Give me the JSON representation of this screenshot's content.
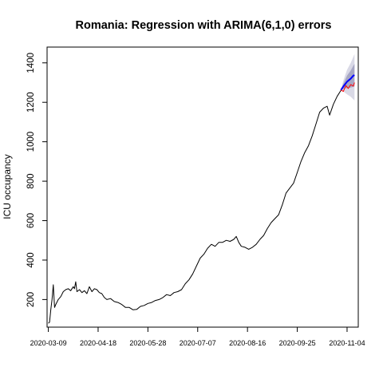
{
  "chart_data": {
    "type": "line",
    "title": "Romania: Regression with ARIMA(6,1,0) errors",
    "xlabel": "",
    "ylabel": "ICU occupancy",
    "x_ticks": [
      "2020-03-09",
      "2020-04-18",
      "2020-05-28",
      "2020-07-07",
      "2020-08-16",
      "2020-09-25",
      "2020-11-04"
    ],
    "y_ticks": [
      200,
      400,
      600,
      800,
      1000,
      1200,
      1400
    ],
    "xlim": [
      "2020-03-08",
      "2020-11-13"
    ],
    "ylim": [
      60,
      1480
    ],
    "grid": false,
    "series": [
      {
        "role": "observed",
        "color": "#000000",
        "points": [
          [
            "2020-03-09",
            80
          ],
          [
            "2020-03-10",
            85
          ],
          [
            "2020-03-11",
            150
          ],
          [
            "2020-03-12",
            200
          ],
          [
            "2020-03-13",
            275
          ],
          [
            "2020-03-14",
            160
          ],
          [
            "2020-03-15",
            175
          ],
          [
            "2020-03-17",
            200
          ],
          [
            "2020-03-19",
            215
          ],
          [
            "2020-03-21",
            240
          ],
          [
            "2020-03-23",
            250
          ],
          [
            "2020-03-25",
            255
          ],
          [
            "2020-03-27",
            245
          ],
          [
            "2020-03-29",
            265
          ],
          [
            "2020-03-30",
            255
          ],
          [
            "2020-03-31",
            290
          ],
          [
            "2020-04-01",
            240
          ],
          [
            "2020-04-03",
            250
          ],
          [
            "2020-04-05",
            235
          ],
          [
            "2020-04-07",
            245
          ],
          [
            "2020-04-09",
            230
          ],
          [
            "2020-04-11",
            265
          ],
          [
            "2020-04-13",
            240
          ],
          [
            "2020-04-15",
            255
          ],
          [
            "2020-04-17",
            250
          ],
          [
            "2020-04-19",
            235
          ],
          [
            "2020-04-21",
            230
          ],
          [
            "2020-04-23",
            210
          ],
          [
            "2020-04-25",
            200
          ],
          [
            "2020-04-28",
            205
          ],
          [
            "2020-05-01",
            190
          ],
          [
            "2020-05-04",
            185
          ],
          [
            "2020-05-07",
            175
          ],
          [
            "2020-05-10",
            160
          ],
          [
            "2020-05-13",
            160
          ],
          [
            "2020-05-16",
            148
          ],
          [
            "2020-05-19",
            150
          ],
          [
            "2020-05-22",
            165
          ],
          [
            "2020-05-25",
            170
          ],
          [
            "2020-05-28",
            180
          ],
          [
            "2020-05-31",
            185
          ],
          [
            "2020-06-03",
            195
          ],
          [
            "2020-06-06",
            200
          ],
          [
            "2020-06-09",
            210
          ],
          [
            "2020-06-12",
            225
          ],
          [
            "2020-06-15",
            220
          ],
          [
            "2020-06-18",
            235
          ],
          [
            "2020-06-21",
            240
          ],
          [
            "2020-06-24",
            250
          ],
          [
            "2020-06-27",
            280
          ],
          [
            "2020-06-30",
            300
          ],
          [
            "2020-07-03",
            330
          ],
          [
            "2020-07-06",
            370
          ],
          [
            "2020-07-09",
            410
          ],
          [
            "2020-07-12",
            430
          ],
          [
            "2020-07-15",
            460
          ],
          [
            "2020-07-18",
            480
          ],
          [
            "2020-07-21",
            470
          ],
          [
            "2020-07-24",
            490
          ],
          [
            "2020-07-27",
            490
          ],
          [
            "2020-07-30",
            500
          ],
          [
            "2020-08-02",
            495
          ],
          [
            "2020-08-05",
            505
          ],
          [
            "2020-08-07",
            520
          ],
          [
            "2020-08-09",
            490
          ],
          [
            "2020-08-11",
            470
          ],
          [
            "2020-08-14",
            465
          ],
          [
            "2020-08-17",
            455
          ],
          [
            "2020-08-20",
            465
          ],
          [
            "2020-08-23",
            480
          ],
          [
            "2020-08-26",
            505
          ],
          [
            "2020-08-29",
            525
          ],
          [
            "2020-09-01",
            560
          ],
          [
            "2020-09-04",
            590
          ],
          [
            "2020-09-07",
            610
          ],
          [
            "2020-09-10",
            630
          ],
          [
            "2020-09-13",
            680
          ],
          [
            "2020-09-16",
            740
          ],
          [
            "2020-09-19",
            765
          ],
          [
            "2020-09-22",
            790
          ],
          [
            "2020-09-25",
            845
          ],
          [
            "2020-09-28",
            900
          ],
          [
            "2020-10-01",
            945
          ],
          [
            "2020-10-04",
            980
          ],
          [
            "2020-10-07",
            1030
          ],
          [
            "2020-10-10",
            1090
          ],
          [
            "2020-10-13",
            1150
          ],
          [
            "2020-10-16",
            1170
          ],
          [
            "2020-10-19",
            1180
          ],
          [
            "2020-10-21",
            1135
          ],
          [
            "2020-10-24",
            1190
          ],
          [
            "2020-10-27",
            1230
          ],
          [
            "2020-10-30",
            1260
          ]
        ]
      },
      {
        "role": "forecast",
        "color": "#0000ff",
        "points": [
          [
            "2020-10-30",
            1262
          ],
          [
            "2020-11-01",
            1280
          ],
          [
            "2020-11-04",
            1305
          ],
          [
            "2020-11-07",
            1320
          ],
          [
            "2020-11-09",
            1335
          ],
          [
            "2020-11-10",
            1338
          ]
        ],
        "interval_80": {
          "lower": [
            1262,
            1268,
            1272,
            1275,
            1278,
            1280
          ],
          "upper": [
            1262,
            1295,
            1335,
            1362,
            1385,
            1395
          ]
        },
        "interval_95": {
          "lower": [
            1262,
            1255,
            1240,
            1228,
            1215,
            1210
          ],
          "upper": [
            1262,
            1310,
            1365,
            1400,
            1430,
            1445
          ]
        }
      },
      {
        "role": "actual",
        "color": "#ff0000",
        "points": [
          [
            "2020-10-30",
            1262
          ],
          [
            "2020-11-01",
            1255
          ],
          [
            "2020-11-03",
            1285
          ],
          [
            "2020-11-05",
            1270
          ],
          [
            "2020-11-07",
            1290
          ],
          [
            "2020-11-09",
            1282
          ],
          [
            "2020-11-10",
            1300
          ]
        ]
      }
    ],
    "colors": {
      "band_95": "#d9d9e6",
      "band_80": "#a7a7c4"
    }
  }
}
